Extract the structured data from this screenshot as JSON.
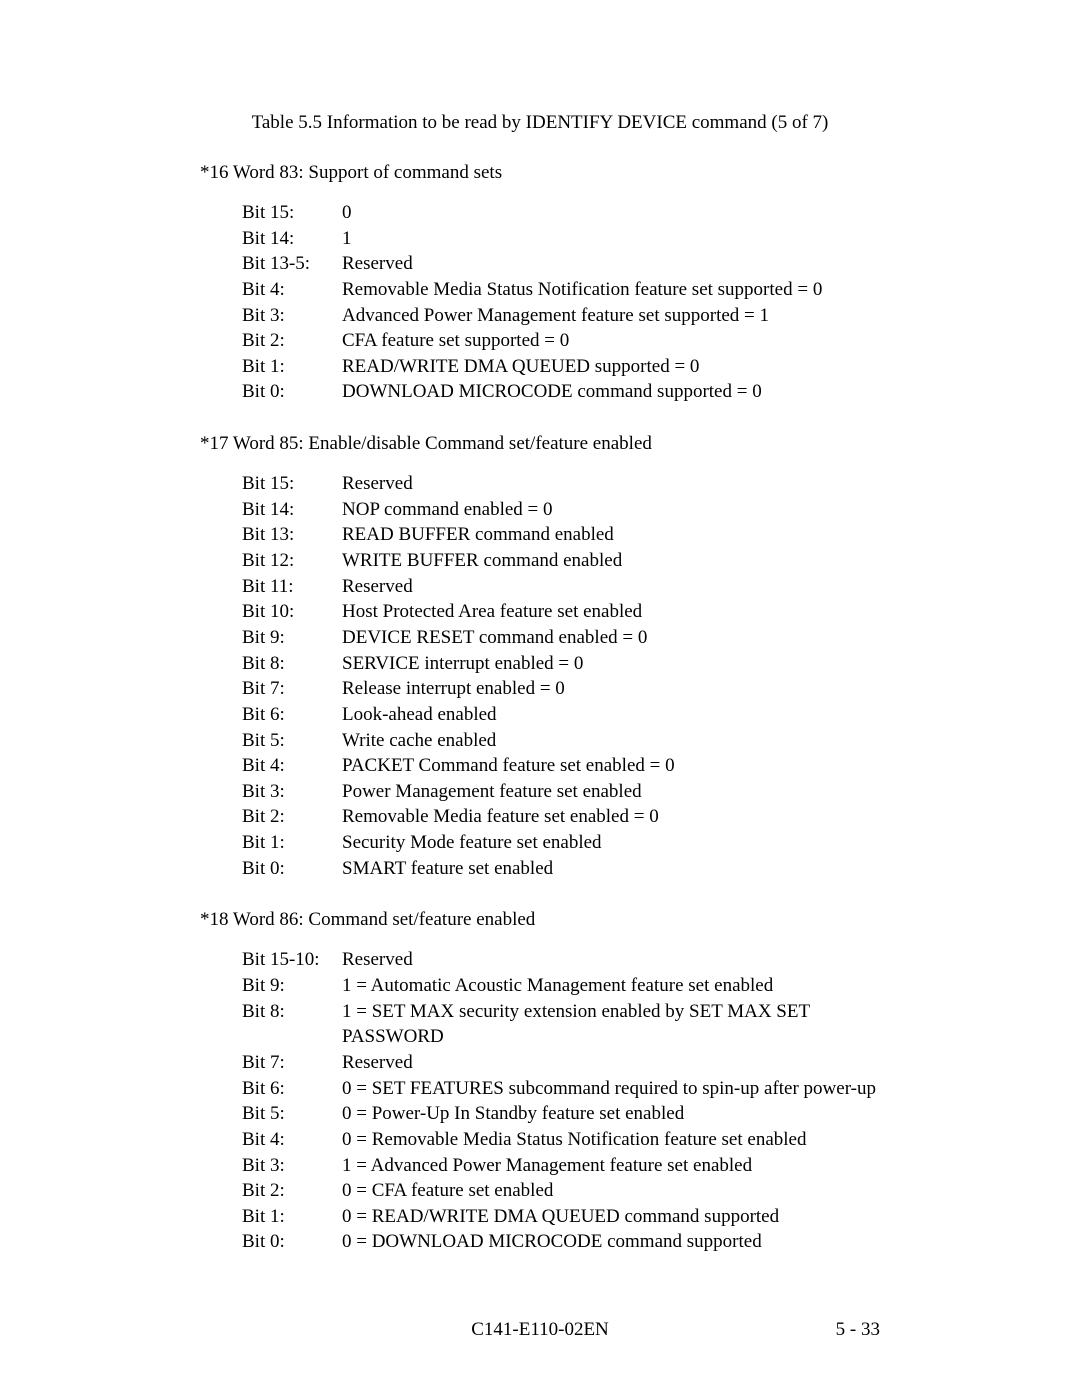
{
  "caption": "Table 5.5    Information to be read by IDENTIFY DEVICE command (5 of 7)",
  "sections": [
    {
      "heading": "*16  Word 83: Support of command sets",
      "rows": [
        {
          "label": "Bit 15:",
          "desc": "0"
        },
        {
          "label": "Bit 14:",
          "desc": "1"
        },
        {
          "label": "Bit 13-5:",
          "desc": "Reserved"
        },
        {
          "label": "Bit 4:",
          "desc": "Removable Media Status Notification feature set supported = 0"
        },
        {
          "label": "Bit 3:",
          "desc": "Advanced Power Management feature set supported = 1"
        },
        {
          "label": "Bit 2:",
          "desc": "CFA feature set supported = 0"
        },
        {
          "label": "Bit 1:",
          "desc": "READ/WRITE DMA QUEUED supported = 0"
        },
        {
          "label": "Bit 0:",
          "desc": "DOWNLOAD MICROCODE command supported = 0"
        }
      ]
    },
    {
      "heading": "*17  Word 85: Enable/disable Command set/feature enabled",
      "rows": [
        {
          "label": "Bit 15:",
          "desc": "Reserved"
        },
        {
          "label": "Bit 14:",
          "desc": "NOP command enabled = 0"
        },
        {
          "label": "Bit 13:",
          "desc": "READ BUFFER command enabled"
        },
        {
          "label": "Bit 12:",
          "desc": "WRITE BUFFER command enabled"
        },
        {
          "label": "Bit 11:",
          "desc": "Reserved"
        },
        {
          "label": "Bit 10:",
          "desc": "Host Protected Area feature set enabled"
        },
        {
          "label": "Bit 9:",
          "desc": "DEVICE RESET command enabled = 0"
        },
        {
          "label": "Bit 8:",
          "desc": "SERVICE interrupt enabled = 0"
        },
        {
          "label": "Bit 7:",
          "desc": "Release interrupt enabled = 0"
        },
        {
          "label": "Bit 6:",
          "desc": "Look-ahead enabled"
        },
        {
          "label": "Bit 5:",
          "desc": "Write cache enabled"
        },
        {
          "label": "Bit 4:",
          "desc": "PACKET Command feature set enabled = 0"
        },
        {
          "label": "Bit 3:",
          "desc": "Power Management feature set enabled"
        },
        {
          "label": "Bit 2:",
          "desc": "Removable Media feature set enabled = 0"
        },
        {
          "label": "Bit 1:",
          "desc": "Security Mode feature set enabled"
        },
        {
          "label": "Bit 0:",
          "desc": "SMART feature set enabled"
        }
      ]
    },
    {
      "heading": "*18  Word 86: Command set/feature enabled",
      "rows": [
        {
          "label": "Bit 15-10:",
          "desc": "Reserved"
        },
        {
          "label": "Bit 9:",
          "desc": "1 = Automatic Acoustic Management feature set enabled"
        },
        {
          "label": "Bit 8:",
          "desc": "1 = SET MAX security extension enabled by SET MAX SET PASSWORD"
        },
        {
          "label": "Bit 7:",
          "desc": "Reserved"
        },
        {
          "label": "Bit 6:",
          "desc": "0 = SET FEATURES subcommand required to spin-up after power-up"
        },
        {
          "label": "Bit 5:",
          "desc": "0 = Power-Up In Standby feature set enabled"
        },
        {
          "label": "Bit 4:",
          "desc": "0 = Removable Media Status Notification feature set enabled"
        },
        {
          "label": "Bit 3:",
          "desc": "1 = Advanced Power Management feature set enabled"
        },
        {
          "label": "Bit 2:",
          "desc": "0 = CFA feature set enabled"
        },
        {
          "label": "Bit 1:",
          "desc": "0 = READ/WRITE DMA QUEUED command supported"
        },
        {
          "label": "Bit 0:",
          "desc": "0 = DOWNLOAD MICROCODE command supported"
        }
      ]
    }
  ],
  "footer": {
    "center": "C141-E110-02EN",
    "right": "5 - 33"
  }
}
